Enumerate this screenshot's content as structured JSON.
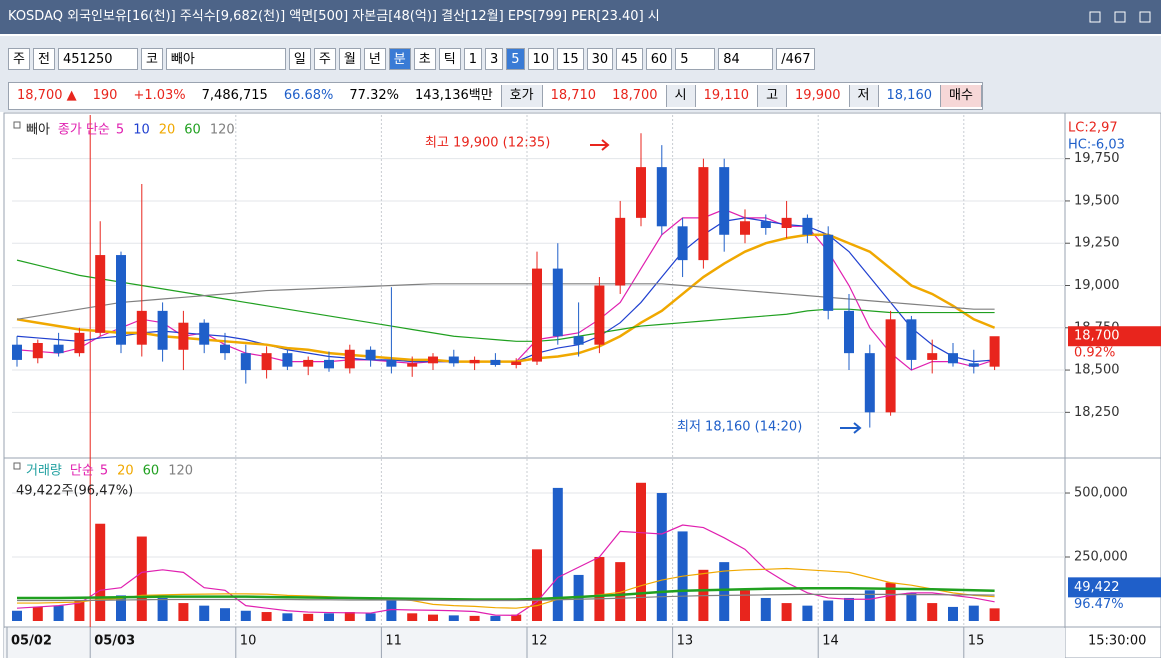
{
  "window": {
    "title": "KOSDAQ 외국인보유[16(천)] 주식수[9,682(천)] 액면[500] 자본금[48(억)] 결산[12월] EPS[799] PER[23.40] 시"
  },
  "toolbar": {
    "items": [
      "주",
      "전",
      "451250",
      "코",
      "빼아",
      "일",
      "주",
      "월",
      "년",
      "분",
      "초",
      "틱",
      "1",
      "3",
      "5",
      "10",
      "15",
      "30",
      "45",
      "60",
      "5",
      "84",
      "/467"
    ]
  },
  "quote": {
    "items": [
      "18,700 ▲",
      "190",
      "+1.03%",
      "7,486,715",
      "66.68%",
      "77.32%",
      "143,136백만",
      "호가",
      "18,710",
      "18,700",
      "시",
      "19,110",
      "고",
      "19,900",
      "저",
      "18,160",
      "매수"
    ]
  },
  "chart_data": [
    {
      "type": "candlestick",
      "name": "빼아",
      "legend_label": "종가 단순",
      "categories": [
        "05/02",
        null,
        null,
        null,
        "05/03",
        null,
        null,
        null,
        null,
        null,
        null,
        "10",
        null,
        null,
        null,
        null,
        null,
        null,
        "11",
        null,
        null,
        null,
        null,
        null,
        null,
        "12",
        null,
        null,
        null,
        null,
        null,
        null,
        "13",
        null,
        null,
        null,
        null,
        null,
        null,
        "14",
        null,
        null,
        null,
        null,
        null,
        null,
        "15",
        null
      ],
      "time": "15:30:00",
      "open": [
        18650,
        18570,
        18650,
        18600,
        18720,
        19180,
        18650,
        18850,
        18620,
        18780,
        18650,
        18600,
        18500,
        18600,
        18520,
        18560,
        18510,
        18620,
        18560,
        18520,
        18540,
        18580,
        18540,
        18560,
        18530,
        18550,
        19100,
        18700,
        18650,
        19000,
        19400,
        19700,
        19350,
        19150,
        19700,
        19300,
        19380,
        19340,
        19400,
        19300,
        18850,
        18600,
        18250,
        18800,
        18560,
        18600,
        18540,
        18520
      ],
      "high": [
        18700,
        18680,
        18720,
        18750,
        19380,
        19200,
        19600,
        18900,
        18850,
        18800,
        18720,
        18650,
        18640,
        18620,
        18580,
        18610,
        18650,
        18640,
        18990,
        18580,
        18600,
        18620,
        18580,
        18600,
        18570,
        19200,
        19250,
        18900,
        19050,
        19500,
        19900,
        19830,
        19400,
        19750,
        19750,
        19450,
        19420,
        19500,
        19420,
        19350,
        18950,
        18650,
        18850,
        18820,
        18680,
        18660,
        18620,
        18680
      ],
      "low": [
        18520,
        18540,
        18580,
        18580,
        18700,
        18600,
        18580,
        18550,
        18500,
        18600,
        18560,
        18420,
        18450,
        18500,
        18470,
        18490,
        18480,
        18520,
        18480,
        18460,
        18500,
        18520,
        18500,
        18520,
        18510,
        18530,
        18650,
        18580,
        18600,
        18950,
        19350,
        19300,
        19050,
        19100,
        19200,
        19250,
        19300,
        19280,
        19250,
        18800,
        18500,
        18160,
        18230,
        18500,
        18480,
        18520,
        18480,
        18500
      ],
      "close": [
        18560,
        18660,
        18600,
        18720,
        19180,
        18650,
        18850,
        18620,
        18780,
        18650,
        18600,
        18500,
        18600,
        18520,
        18560,
        18510,
        18620,
        18560,
        18520,
        18540,
        18580,
        18540,
        18560,
        18530,
        18550,
        19100,
        18700,
        18650,
        19000,
        19400,
        19700,
        19350,
        19150,
        19700,
        19300,
        19380,
        19340,
        19400,
        19300,
        18850,
        18600,
        18250,
        18800,
        18560,
        18600,
        18540,
        18520,
        18700
      ],
      "up_color": "#e8251d",
      "down_color": "#1f5fc9",
      "series": [
        {
          "name": "5",
          "color": "#e020b0",
          "values": [
            18620,
            18610,
            18600,
            18630,
            18700,
            18750,
            18800,
            18780,
            18700,
            18720,
            18650,
            18600,
            18580,
            18550,
            18550,
            18550,
            18560,
            18560,
            18550,
            18540,
            18550,
            18550,
            18550,
            18550,
            18550,
            18680,
            18700,
            18720,
            18800,
            18900,
            19100,
            19300,
            19400,
            19400,
            19450,
            19400,
            19400,
            19350,
            19350,
            19200,
            19000,
            18750,
            18600,
            18500,
            18550,
            18550,
            18520,
            18560
          ]
        },
        {
          "name": "10",
          "color": "#2040d0",
          "values": [
            18700,
            18690,
            18680,
            18670,
            18690,
            18700,
            18720,
            18730,
            18720,
            18710,
            18700,
            18680,
            18650,
            18620,
            18600,
            18580,
            18570,
            18560,
            18560,
            18550,
            18550,
            18550,
            18550,
            18550,
            18550,
            18600,
            18630,
            18650,
            18700,
            18780,
            18900,
            19050,
            19200,
            19300,
            19380,
            19400,
            19380,
            19360,
            19350,
            19300,
            19200,
            19050,
            18900,
            18750,
            18650,
            18580,
            18550,
            18560
          ]
        },
        {
          "name": "20",
          "color": "#f0a800",
          "values": [
            18800,
            18780,
            18760,
            18740,
            18730,
            18720,
            18720,
            18700,
            18690,
            18680,
            18670,
            18660,
            18650,
            18630,
            18620,
            18600,
            18590,
            18580,
            18570,
            18560,
            18560,
            18550,
            18550,
            18550,
            18550,
            18570,
            18580,
            18600,
            18640,
            18700,
            18780,
            18850,
            18950,
            19050,
            19130,
            19200,
            19250,
            19280,
            19300,
            19300,
            19250,
            19200,
            19100,
            19000,
            18950,
            18880,
            18800,
            18750
          ]
        },
        {
          "name": "60",
          "color": "#20a020",
          "values": [
            19150,
            19120,
            19090,
            19060,
            19040,
            19020,
            19000,
            18980,
            18960,
            18940,
            18920,
            18900,
            18880,
            18860,
            18840,
            18820,
            18800,
            18780,
            18760,
            18740,
            18720,
            18700,
            18690,
            18680,
            18670,
            18670,
            18680,
            18700,
            18720,
            18740,
            18760,
            18770,
            18780,
            18790,
            18800,
            18810,
            18820,
            18830,
            18850,
            18860,
            18860,
            18850,
            18840,
            18840,
            18840,
            18840,
            18840,
            18840
          ]
        },
        {
          "name": "120",
          "color": "#808080",
          "values": [
            18800,
            18820,
            18840,
            18860,
            18880,
            18900,
            18910,
            18920,
            18930,
            18940,
            18950,
            18960,
            18970,
            18975,
            18980,
            18985,
            18990,
            18995,
            19000,
            19005,
            19010,
            19010,
            19010,
            19010,
            19010,
            19010,
            19010,
            19010,
            19010,
            19010,
            19010,
            19010,
            19000,
            18990,
            18980,
            18970,
            18960,
            18950,
            18940,
            18930,
            18920,
            18910,
            18900,
            18890,
            18880,
            18870,
            18860,
            18860
          ]
        }
      ],
      "ylim": [
        17980,
        20020
      ],
      "yticks": [
        {
          "value": 18250,
          "label": "18,250"
        },
        {
          "value": 18500,
          "label": "18,500"
        },
        {
          "value": 18750,
          "label": "18,750"
        },
        {
          "value": 19000,
          "label": "19,000"
        },
        {
          "value": 19250,
          "label": "19,250"
        },
        {
          "value": 19500,
          "label": "19,500"
        },
        {
          "value": 19750,
          "label": "19,750"
        }
      ],
      "side_labels": [
        "LC:2,97",
        "HC:-6,03"
      ],
      "current_price": {
        "value": 18700,
        "label": "18,700"
      },
      "change_label": "0.92%",
      "annotations": [
        "최고 19,900 (12:35)",
        "최저 18,160 (14:20)"
      ]
    },
    {
      "type": "bar",
      "name": "거래량",
      "legend_label": "단순",
      "summary": "49,422주(96,47%)",
      "values": [
        40000,
        55000,
        60000,
        80000,
        380000,
        100000,
        330000,
        90000,
        70000,
        60000,
        50000,
        40000,
        35000,
        30000,
        28000,
        30000,
        35000,
        30000,
        90000,
        30000,
        25000,
        22000,
        20000,
        20000,
        25000,
        280000,
        520000,
        180000,
        250000,
        230000,
        540000,
        500000,
        350000,
        200000,
        230000,
        120000,
        90000,
        70000,
        60000,
        80000,
        90000,
        120000,
        150000,
        110000,
        70000,
        55000,
        60000,
        49422
      ],
      "series": [
        {
          "name": "5",
          "color": "#e020b0",
          "values": [
            50000,
            55000,
            60000,
            70000,
            120000,
            130000,
            190000,
            200000,
            190000,
            130000,
            120000,
            60000,
            50000,
            40000,
            35000,
            33000,
            32000,
            31000,
            45000,
            43000,
            42000,
            40000,
            37000,
            23000,
            22000,
            75000,
            170000,
            210000,
            250000,
            350000,
            345000,
            340000,
            375000,
            365000,
            325000,
            280000,
            200000,
            150000,
            110000,
            90000,
            85000,
            85000,
            100000,
            110000,
            110000,
            100000,
            90000,
            75000
          ]
        },
        {
          "name": "20",
          "color": "#f0a800",
          "values": [
            70000,
            70000,
            72000,
            74000,
            85000,
            88000,
            100000,
            102000,
            104000,
            105000,
            106000,
            106000,
            105000,
            100000,
            98000,
            95000,
            92000,
            90000,
            88000,
            80000,
            65000,
            60000,
            57000,
            52000,
            50000,
            60000,
            85000,
            92000,
            102000,
            112000,
            138000,
            160000,
            175000,
            185000,
            195000,
            200000,
            202000,
            205000,
            200000,
            195000,
            190000,
            170000,
            150000,
            140000,
            125000,
            110000,
            100000,
            95000
          ]
        },
        {
          "name": "60",
          "color": "#20a020",
          "values": [
            90000,
            90000,
            90000,
            91000,
            92000,
            93000,
            94000,
            95000,
            95000,
            95000,
            95000,
            95000,
            94000,
            93000,
            92000,
            91000,
            90000,
            89000,
            88000,
            87000,
            86000,
            85000,
            84000,
            84000,
            84000,
            86000,
            90000,
            94000,
            98000,
            102000,
            108000,
            114000,
            118000,
            120000,
            122000,
            124000,
            126000,
            127000,
            128000,
            128000,
            128000,
            127000,
            126000,
            125000,
            124000,
            122000,
            120000,
            118000
          ]
        },
        {
          "name": "120",
          "color": "#808080",
          "values": [
            80000,
            80000,
            80000,
            80000,
            81000,
            82000,
            83000,
            84000,
            84000,
            84000,
            84000,
            84000,
            84000,
            84000,
            83000,
            83000,
            82000,
            82000,
            82000,
            81000,
            81000,
            80000,
            80000,
            80000,
            80000,
            81000,
            83000,
            85000,
            87000,
            89000,
            92000,
            95000,
            97000,
            99000,
            100000,
            101000,
            102000,
            103000,
            104000,
            104000,
            104000,
            104000,
            104000,
            103000,
            103000,
            102000,
            102000,
            101000
          ]
        }
      ],
      "ylim": [
        0,
        629000
      ],
      "yticks": [
        {
          "value": 250000,
          "label": "250,000"
        },
        {
          "value": 500000,
          "label": "500,000"
        }
      ],
      "current_value": {
        "value": 49422,
        "label": "49,422"
      },
      "ratio_label": "96.47%"
    }
  ]
}
